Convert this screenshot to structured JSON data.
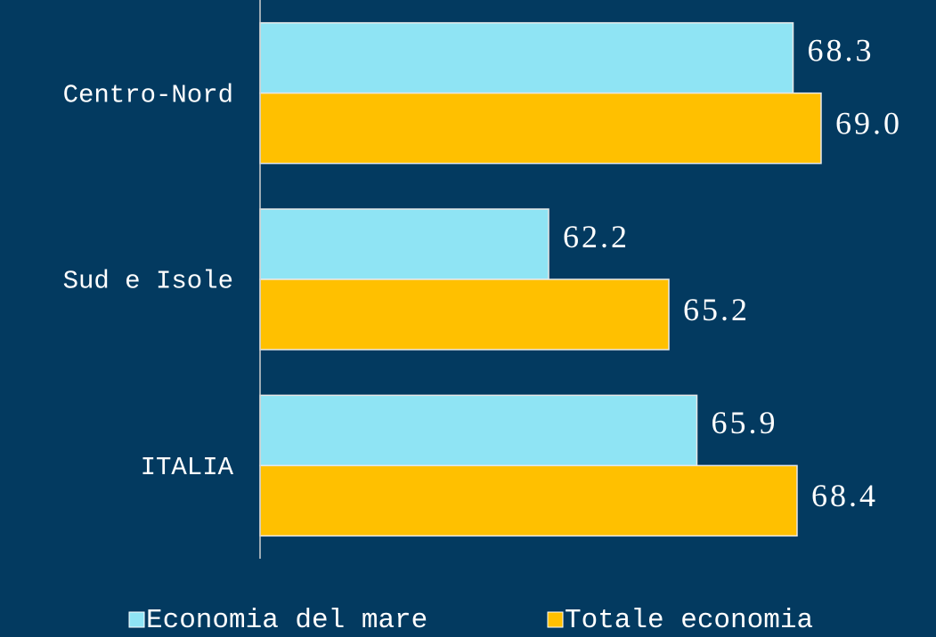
{
  "chart_data": {
    "type": "barh",
    "categories": [
      "Centro-Nord",
      "Sud e Isole",
      "ITALIA"
    ],
    "series": [
      {
        "name": "Economia del mare",
        "color": "#8fe4f4",
        "values": [
          68.3,
          62.2,
          65.9
        ],
        "value_labels": [
          "68.3",
          "62.2",
          "65.9"
        ]
      },
      {
        "name": "Totale economia",
        "color": "#ffc000",
        "values": [
          69.0,
          65.2,
          68.4
        ],
        "value_labels": [
          "69.0",
          "65.2",
          "68.4"
        ]
      }
    ],
    "xlim": [
      55,
      70
    ]
  }
}
